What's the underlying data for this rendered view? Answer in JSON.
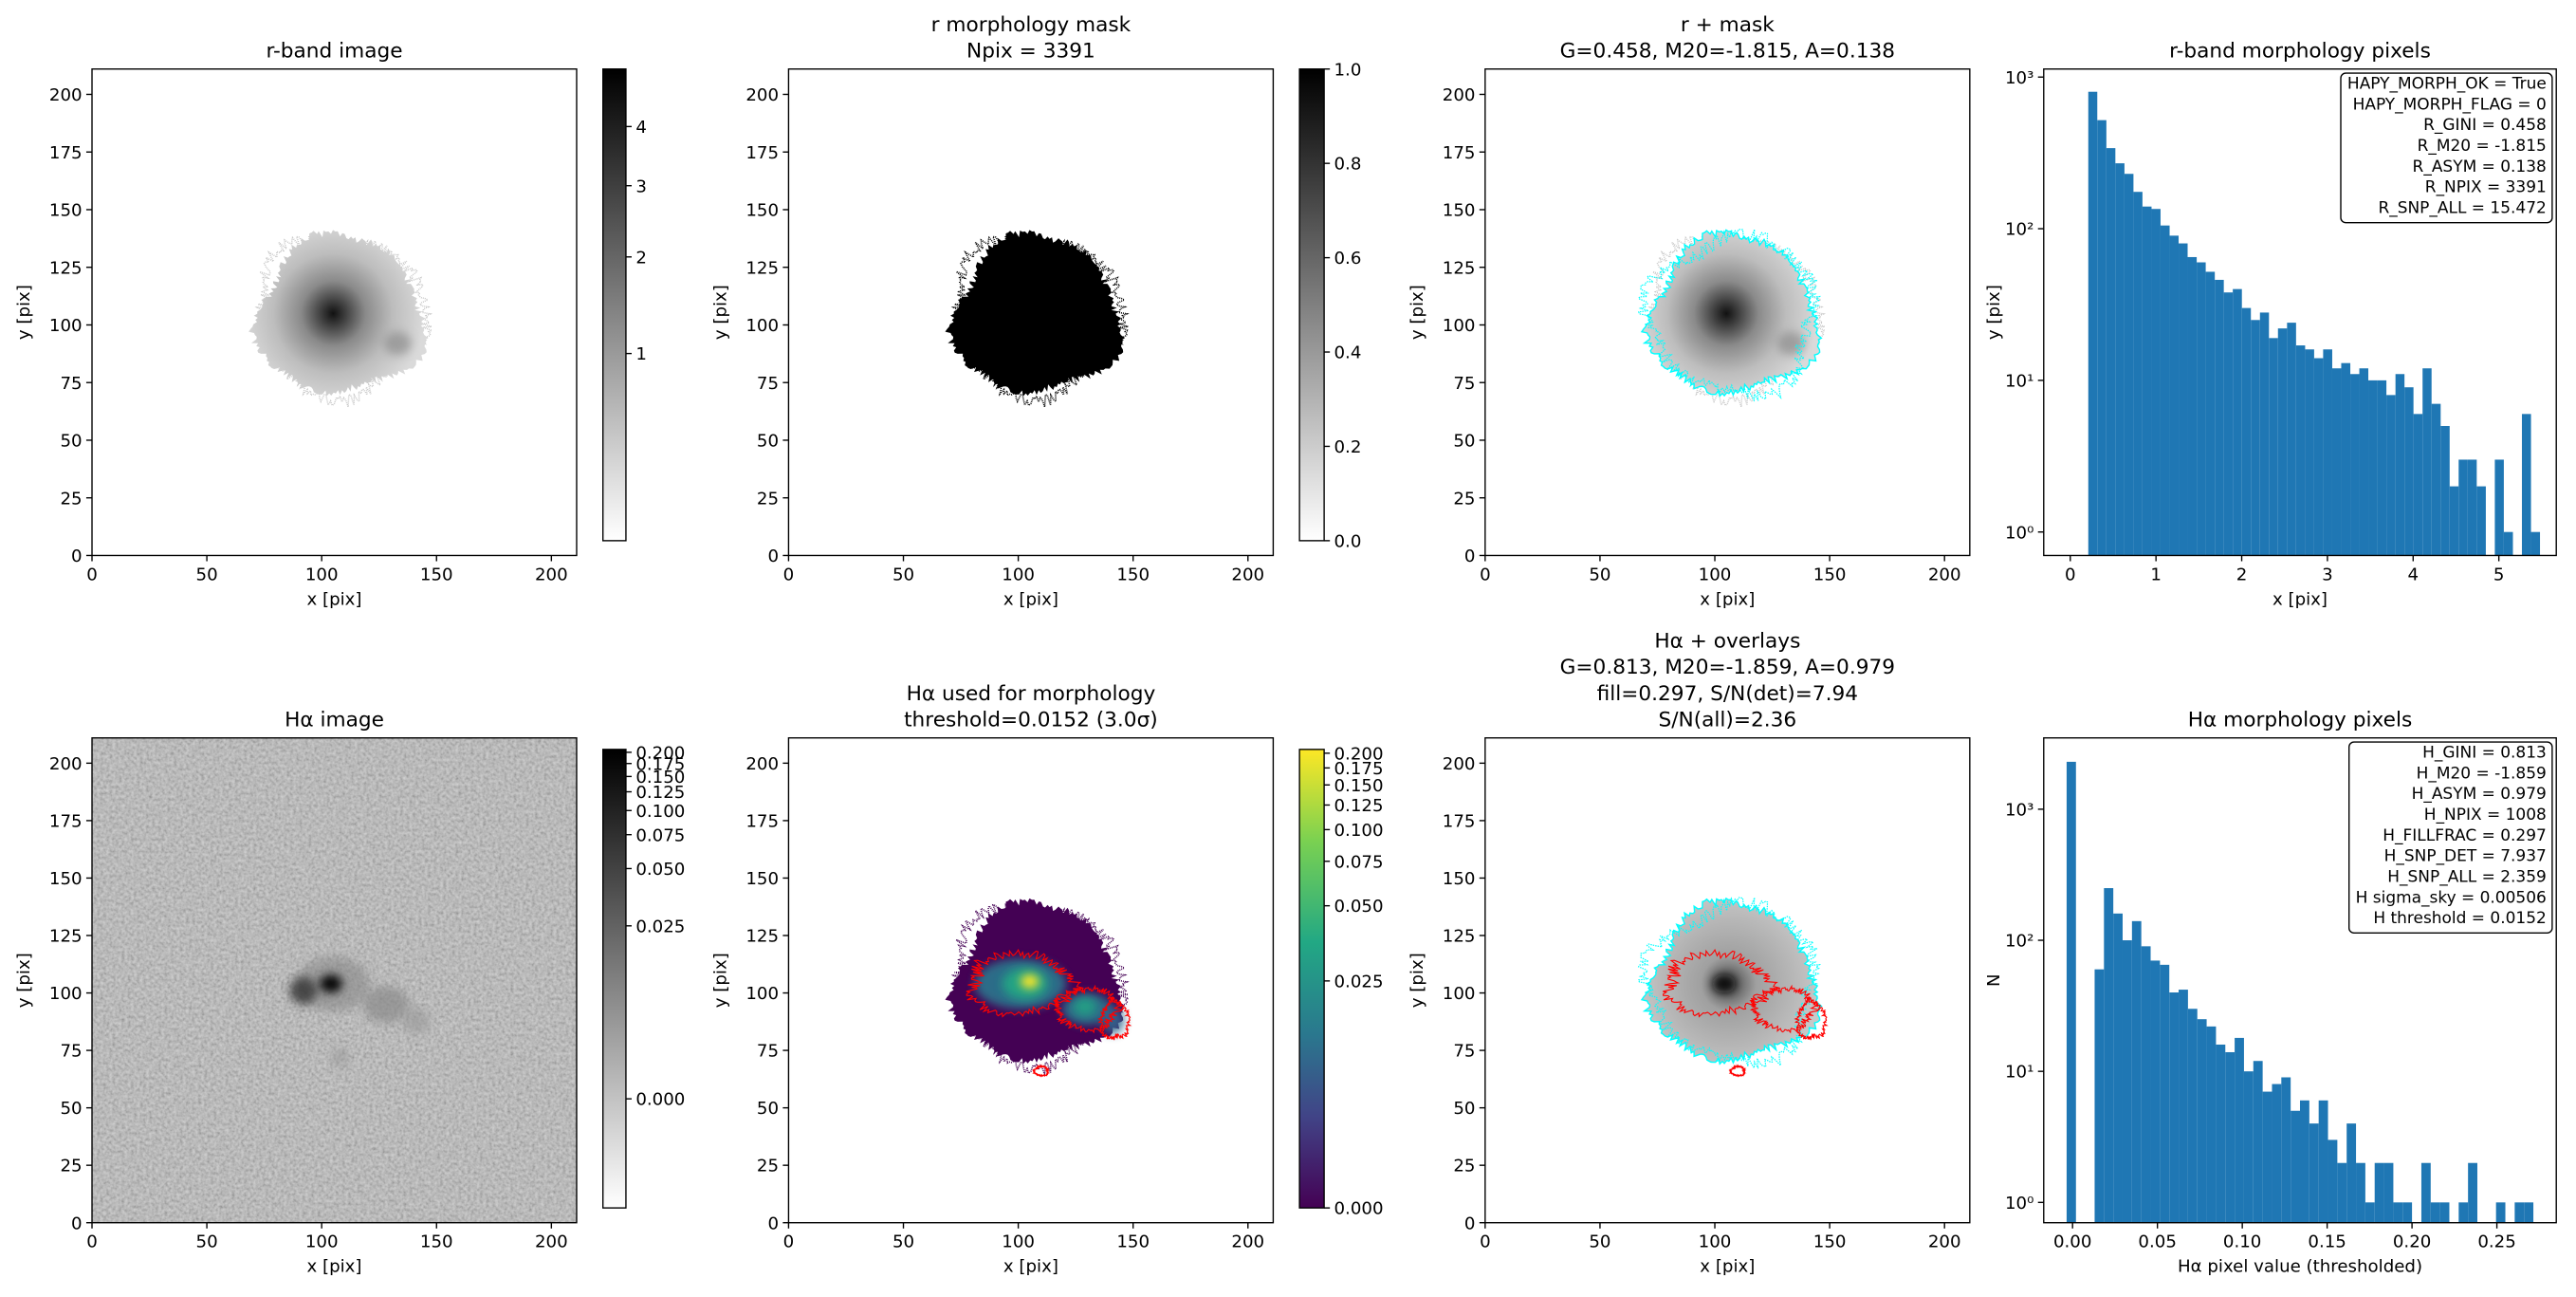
{
  "chart_data": [
    {
      "type": "image",
      "title": [
        "r-band image"
      ],
      "xlabel": "x [pix]",
      "ylabel": "y [pix]",
      "xlim": [
        0,
        211
      ],
      "ylim": [
        0,
        211
      ],
      "xticks": [
        0,
        50,
        100,
        150,
        200
      ],
      "yticks": [
        0,
        25,
        50,
        75,
        100,
        125,
        150,
        175,
        200
      ],
      "cmap": "gray_r",
      "colorbar": {
        "lim": [
          0.23,
          5.12
        ],
        "stretch": "sqrt",
        "ticks": [
          1,
          2,
          3,
          4
        ]
      }
    },
    {
      "type": "image",
      "title": [
        "r morphology mask",
        "Npix = 3391"
      ],
      "xlabel": "x [pix]",
      "ylabel": "y [pix]",
      "xlim": [
        0,
        211
      ],
      "ylim": [
        0,
        211
      ],
      "xticks": [
        0,
        50,
        100,
        150,
        200
      ],
      "yticks": [
        0,
        25,
        50,
        75,
        100,
        125,
        150,
        175,
        200
      ],
      "cmap": "gray_r",
      "colorbar": {
        "lim": [
          0,
          1
        ],
        "stretch": "linear",
        "ticks": [
          {
            "value": 0,
            "label": "0.0"
          },
          0.2,
          0.4,
          0.6,
          0.8,
          {
            "value": 1,
            "label": "1.0"
          }
        ]
      }
    },
    {
      "type": "image",
      "title": [
        "r + mask",
        "G=0.458, M20=-1.815, A=0.138"
      ],
      "xlabel": "x [pix]",
      "ylabel": "y [pix]",
      "xlim": [
        0,
        211
      ],
      "ylim": [
        0,
        211
      ],
      "xticks": [
        0,
        50,
        100,
        150,
        200
      ],
      "yticks": [
        0,
        25,
        50,
        75,
        100,
        125,
        150,
        175,
        200
      ],
      "mask_color": "cyan"
    },
    {
      "type": "histogram",
      "title": [
        "r-band morphology pixels"
      ],
      "xlabel": "x [pix]",
      "ylabel": "y [pix]",
      "color": "#1f77b4",
      "log_y": true,
      "xlim": [
        -0.31,
        5.67
      ],
      "ylim": [
        0.7,
        1130
      ],
      "xticks": [
        0,
        1,
        2,
        3,
        4,
        5
      ],
      "yticks": [
        {
          "value": 1,
          "label": "10⁰"
        },
        {
          "value": 10,
          "label": "10¹"
        },
        {
          "value": 100,
          "label": "10²"
        },
        {
          "value": 1000,
          "label": "10³"
        }
      ],
      "bins": [
        0.21,
        0.315,
        0.421,
        0.526,
        0.632,
        0.737,
        0.842,
        0.948,
        1.053,
        1.159,
        1.264,
        1.369,
        1.475,
        1.58,
        1.686,
        1.791,
        1.896,
        2.002,
        2.107,
        2.213,
        2.318,
        2.423,
        2.529,
        2.634,
        2.74,
        2.845,
        2.95,
        3.056,
        3.161,
        3.267,
        3.372,
        3.477,
        3.583,
        3.688,
        3.794,
        3.899,
        4.004,
        4.11,
        4.215,
        4.321,
        4.426,
        4.531,
        4.637,
        4.742,
        4.848,
        4.953,
        5.058,
        5.164,
        5.269,
        5.375,
        5.48
      ],
      "values": [
        800,
        520,
        340,
        270,
        230,
        175,
        140,
        135,
        105,
        90,
        80,
        65,
        60,
        52,
        46,
        38,
        40,
        30,
        25,
        28,
        19,
        22,
        24,
        17,
        16,
        14,
        16,
        12,
        13,
        11,
        12,
        10,
        10,
        8,
        11,
        9,
        6,
        12,
        7,
        5,
        2,
        3,
        3,
        2,
        0,
        3,
        1,
        0,
        6,
        1
      ],
      "stats": [
        "HAPY_MORPH_OK = True",
        "HAPY_MORPH_FLAG = 0",
        "R_GINI = 0.458",
        "R_M20 = -1.815",
        "R_ASYM = 0.138",
        "R_NPIX = 3391",
        "R_SNP_ALL = 15.472"
      ]
    },
    {
      "type": "image",
      "title": [
        "Hα image"
      ],
      "xlabel": "x [pix]",
      "ylabel": "y [pix]",
      "xlim": [
        0,
        211
      ],
      "ylim": [
        0,
        211
      ],
      "xticks": [
        0,
        50,
        100,
        150,
        200
      ],
      "yticks": [
        0,
        25,
        50,
        75,
        100,
        125,
        150,
        175,
        200
      ],
      "cmap": "gray_r",
      "colorbar": {
        "lim": [
          -0.011,
          0.207
        ],
        "stretch": "asinh",
        "ticks": [
          {
            "value": 0,
            "label": "0.000"
          },
          0.025,
          {
            "value": 0.05,
            "label": "0.050"
          },
          0.075,
          {
            "value": 0.1,
            "label": "0.100"
          },
          0.125,
          {
            "value": 0.15,
            "label": "0.150"
          },
          0.175,
          {
            "value": 0.2,
            "label": "0.200"
          }
        ]
      }
    },
    {
      "type": "image",
      "title": [
        "Hα used for morphology",
        "threshold=0.0152 (3.0σ)"
      ],
      "xlabel": "x [pix]",
      "ylabel": "y [pix]",
      "xlim": [
        0,
        211
      ],
      "ylim": [
        0,
        211
      ],
      "xticks": [
        0,
        50,
        100,
        150,
        200
      ],
      "yticks": [
        0,
        25,
        50,
        75,
        100,
        125,
        150,
        175,
        200
      ],
      "cmap": "viridis",
      "contour_color": "red",
      "colorbar": {
        "lim": [
          0,
          0.207
        ],
        "stretch": "asinh",
        "ticks": [
          {
            "value": 0,
            "label": "0.000"
          },
          0.025,
          {
            "value": 0.05,
            "label": "0.050"
          },
          0.075,
          {
            "value": 0.1,
            "label": "0.100"
          },
          0.125,
          {
            "value": 0.15,
            "label": "0.150"
          },
          0.175,
          {
            "value": 0.2,
            "label": "0.200"
          }
        ]
      }
    },
    {
      "type": "image",
      "title": [
        "Hα + overlays",
        "G=0.813, M20=-1.859, A=0.979",
        "fill=0.297, S/N(det)=7.94",
        "S/N(all)=2.36"
      ],
      "xlabel": "x [pix]",
      "ylabel": "y [pix]",
      "xlim": [
        0,
        211
      ],
      "ylim": [
        0,
        211
      ],
      "xticks": [
        0,
        50,
        100,
        150,
        200
      ],
      "yticks": [
        0,
        25,
        50,
        75,
        100,
        125,
        150,
        175,
        200
      ],
      "mask_color": "cyan",
      "contour_color": "red"
    },
    {
      "type": "histogram",
      "title": [
        "Hα morphology pixels"
      ],
      "xlabel": "Hα pixel value (thresholded)",
      "ylabel": "N",
      "color": "#1f77b4",
      "log_y": true,
      "xlim": [
        -0.017,
        0.285
      ],
      "ylim": [
        0.7,
        3500
      ],
      "xticks": [
        {
          "value": 0,
          "label": "0.00"
        },
        0.05,
        {
          "value": 0.1,
          "label": "0.10"
        },
        0.15,
        {
          "value": 0.2,
          "label": "0.20"
        },
        0.25
      ],
      "yticks": [
        {
          "value": 1,
          "label": "10⁰"
        },
        {
          "value": 10,
          "label": "10¹"
        },
        {
          "value": 100,
          "label": "10²"
        },
        {
          "value": 1000,
          "label": "10³"
        }
      ],
      "bins": [
        -0.0035,
        0.002,
        0.0075,
        0.013,
        0.0185,
        0.024,
        0.0295,
        0.035,
        0.0405,
        0.046,
        0.0515,
        0.057,
        0.0625,
        0.068,
        0.0735,
        0.079,
        0.0845,
        0.09,
        0.0955,
        0.101,
        0.1065,
        0.112,
        0.1175,
        0.123,
        0.1285,
        0.134,
        0.1395,
        0.145,
        0.1505,
        0.156,
        0.1615,
        0.167,
        0.1725,
        0.178,
        0.1835,
        0.189,
        0.1945,
        0.2,
        0.2055,
        0.211,
        0.2165,
        0.222,
        0.2275,
        0.233,
        0.2385,
        0.244,
        0.2495,
        0.255,
        0.2605,
        0.266,
        0.2715
      ],
      "values": [
        2300,
        0,
        0,
        60,
        250,
        160,
        100,
        140,
        90,
        70,
        65,
        40,
        42,
        30,
        25,
        22,
        16,
        14,
        18,
        10,
        12,
        7,
        8,
        9,
        5,
        6,
        4,
        6,
        3,
        2,
        4,
        2,
        1,
        2,
        2,
        1,
        1,
        0,
        2,
        1,
        1,
        0,
        1,
        2,
        0,
        0,
        1,
        0,
        1,
        1
      ],
      "stats": [
        "H_GINI = 0.813",
        "H_M20 = -1.859",
        "H_ASYM = 0.979",
        "H_NPIX = 1008",
        "H_FILLFRAC = 0.297",
        "H_SNP_DET = 7.937",
        "H_SNP_ALL = 2.359",
        "H sigma_sky = 0.00506",
        "H threshold = 0.0152"
      ]
    }
  ]
}
